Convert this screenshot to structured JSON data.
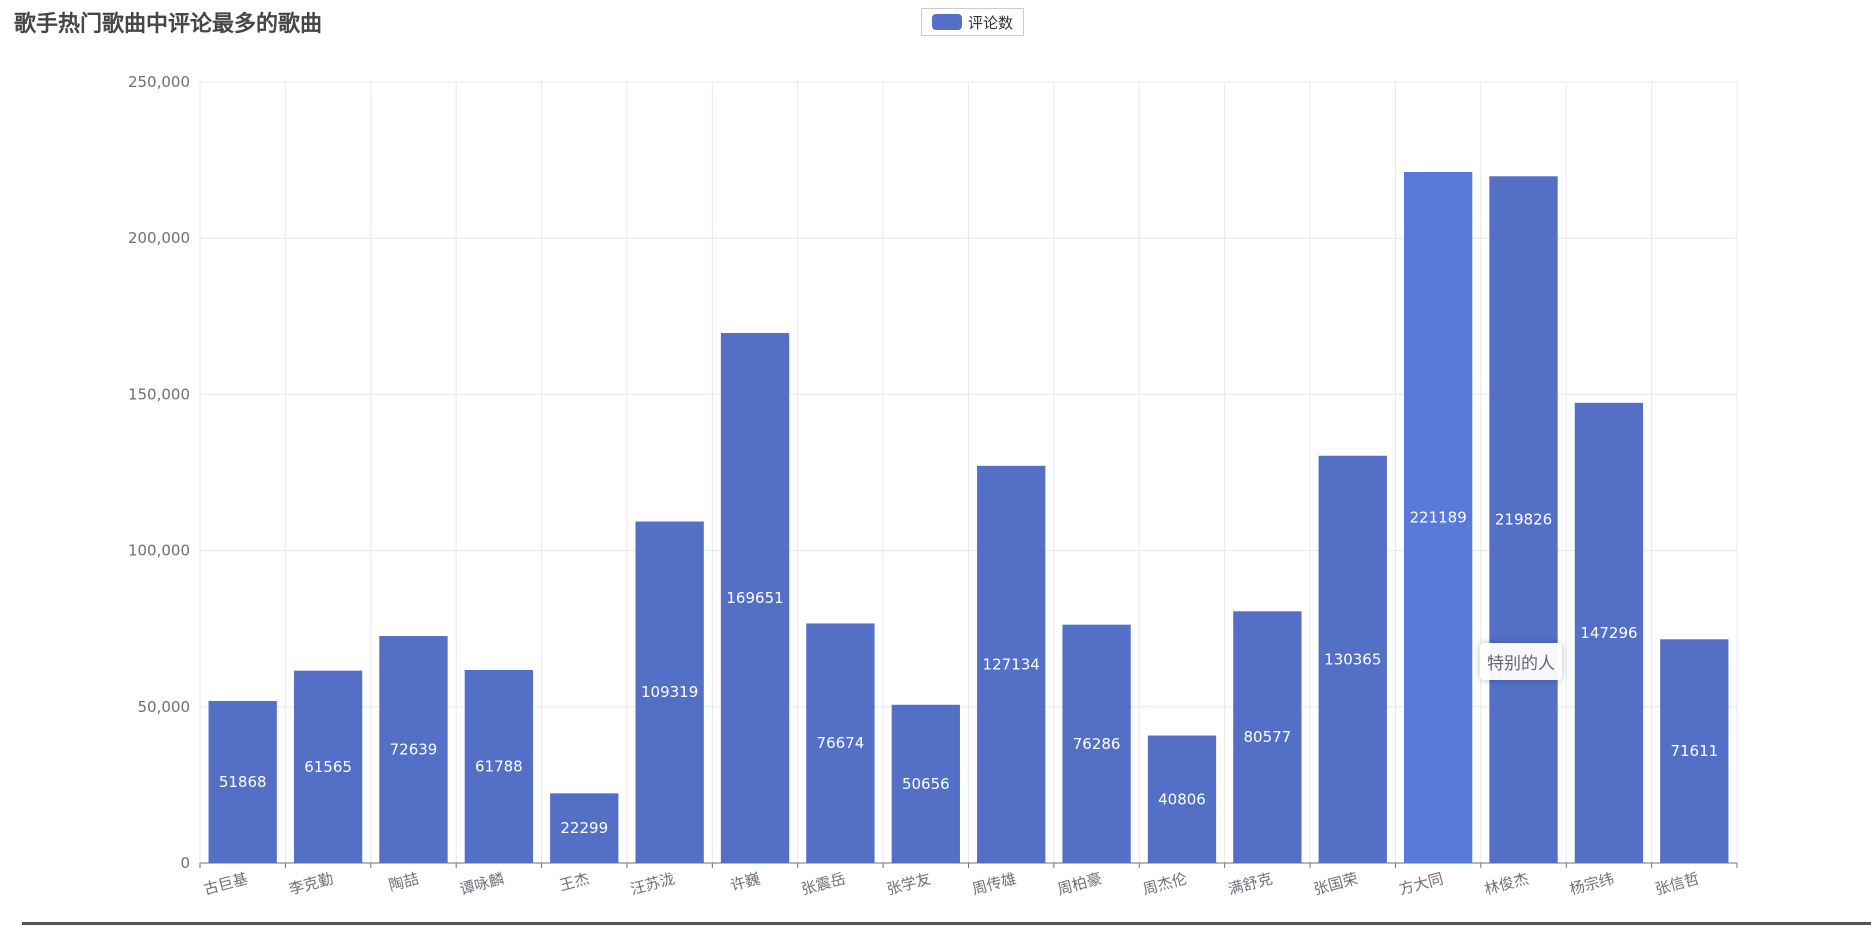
{
  "chart_data": {
    "type": "bar",
    "title": "歌手热门歌曲中评论最多的歌曲",
    "legend": {
      "label": "评论数",
      "placement": "top-center"
    },
    "categories": [
      "古巨基",
      "李克勤",
      "陶喆",
      "谭咏麟",
      "王杰",
      "汪苏泷",
      "许巍",
      "张震岳",
      "张学友",
      "周传雄",
      "周柏豪",
      "周杰伦",
      "满舒克",
      "张国荣",
      "方大同",
      "林俊杰",
      "杨宗纬",
      "张信哲"
    ],
    "series": [
      {
        "name": "评论数",
        "values": [
          51868,
          61565,
          72639,
          61788,
          22299,
          109319,
          169651,
          76674,
          50656,
          127134,
          76286,
          40806,
          80577,
          130365,
          221189,
          219826,
          147296,
          71611
        ]
      }
    ],
    "ylim": [
      0,
      250000
    ],
    "yticks": [
      "0",
      "50,000",
      "100,000",
      "150,000",
      "200,000",
      "250,000"
    ],
    "grid": true,
    "highlighted_index": 14,
    "tooltip": "特别的人"
  },
  "colors": {
    "bar": "#5470c6",
    "bar_highlight": "#5b79d6",
    "grid": "#e6e9f2",
    "axis": "#6e7079",
    "label": "#ffffff"
  }
}
